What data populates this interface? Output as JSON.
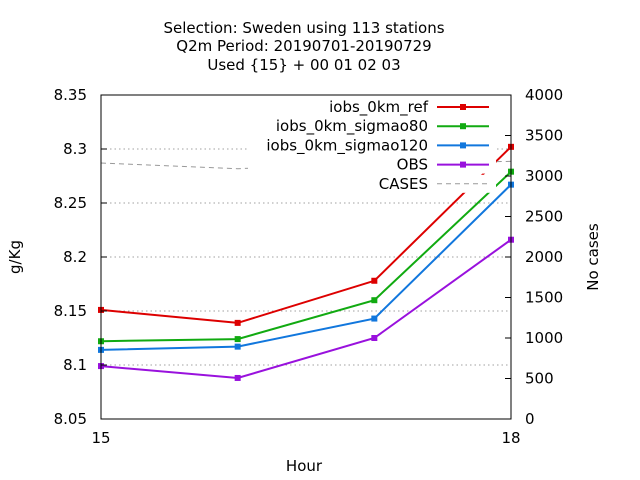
{
  "chart_data": {
    "type": "line",
    "title_lines": [
      "Selection: Sweden using   113 stations",
      "Q2m   Period: 20190701-20190729",
      "Used {15} + 00 01 02 03"
    ],
    "xlabel": "Hour",
    "ylabel": "g/Kg",
    "y2label": "No cases",
    "xlim": [
      15,
      18
    ],
    "ylim": [
      8.05,
      8.35
    ],
    "y2lim": [
      0,
      4000
    ],
    "x_ticks": [
      "15",
      "18"
    ],
    "y_ticks": [
      "8.05",
      "8.1",
      "8.15",
      "8.2",
      "8.25",
      "8.3",
      "8.35"
    ],
    "y2_ticks": [
      "0",
      "500",
      "1000",
      "1500",
      "2000",
      "2500",
      "3000",
      "3500",
      "4000"
    ],
    "grid": true,
    "legend_position": "top-right",
    "series": [
      {
        "name": "iobs_0km_ref",
        "color": "#dd0000",
        "axis": "y",
        "style": "solid",
        "x": [
          15,
          16,
          17,
          18
        ],
        "values": [
          8.151,
          8.139,
          8.178,
          8.302
        ]
      },
      {
        "name": "iobs_0km_sigmao80",
        "color": "#11aa11",
        "axis": "y",
        "style": "solid",
        "x": [
          15,
          16,
          17,
          18
        ],
        "values": [
          8.122,
          8.124,
          8.16,
          8.279
        ]
      },
      {
        "name": "iobs_0km_sigmao120",
        "color": "#1177dd",
        "axis": "y",
        "style": "solid",
        "x": [
          15,
          16,
          17,
          18
        ],
        "values": [
          8.114,
          8.117,
          8.143,
          8.267
        ]
      },
      {
        "name": "OBS",
        "color": "#9911dd",
        "axis": "y",
        "style": "solid",
        "x": [
          15,
          16,
          17,
          18
        ],
        "values": [
          8.099,
          8.088,
          8.125,
          8.216
        ]
      },
      {
        "name": "CASES",
        "color": "#999999",
        "axis": "y2",
        "style": "dashed",
        "x": [
          15,
          16,
          17,
          18
        ],
        "values": [
          3160,
          3090,
          3160,
          3180
        ]
      }
    ]
  }
}
